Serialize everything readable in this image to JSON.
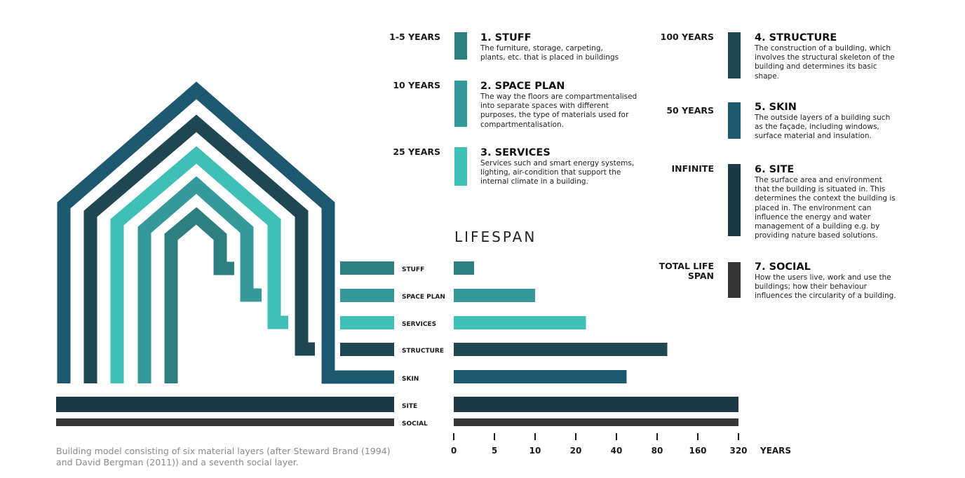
{
  "layers": [
    {
      "key": "stuff",
      "years": "1-5 YEARS",
      "title": "1. STUFF",
      "desc": "The furniture, storage, carpeting, plants, etc. that is placed in buildings",
      "color": "#2e7f80"
    },
    {
      "key": "space_plan",
      "years": "10 YEARS",
      "title": "2. SPACE PLAN",
      "desc": "The way the floors are compartmentalised into separate spaces with different purposes, the type of materials used for compartmentalisation.",
      "color": "#35989a"
    },
    {
      "key": "services",
      "years": "25 YEARS",
      "title": "3. SERVICES",
      "desc": "Services such and smart energy systems, lighting, air-condition that support the internal climate in a building.",
      "color": "#3fbfb5"
    },
    {
      "key": "structure",
      "years": "100 YEARS",
      "title": "4. STRUCTURE",
      "desc": "The construction of a building, which involves the structural skeleton of the building and determines its basic shape.",
      "color": "#1f4752"
    },
    {
      "key": "skin",
      "years": "50 YEARS",
      "title": "5. SKIN",
      "desc": "The outside layers of a building such as the façade, including windows, surface material and insulation.",
      "color": "#1e5870"
    },
    {
      "key": "site",
      "years": "INFINITE",
      "title": "6. SITE",
      "desc": "The surface area and environment that the building is situated in. This determines the context the building is placed in. The environment can influence the energy and water management of a building e.g. by providing nature based solutions.",
      "color": "#1c3a44"
    },
    {
      "key": "social",
      "years": "TOTAL LIFE SPAN",
      "title": "7. SOCIAL",
      "desc": "How the users live, work and use the buildings; how their behaviour influences the circularity of a building.",
      "color": "#363636"
    }
  ],
  "chart_data": {
    "type": "bar",
    "title": "LIFESPAN",
    "categories": [
      "STUFF",
      "SPACE PLAN",
      "SERVICES",
      "STRUCTURE",
      "SKIN",
      "SITE",
      "SOCIAL"
    ],
    "values": [
      2.5,
      10,
      25,
      100,
      50,
      320,
      320
    ],
    "colors": [
      "#2e7f80",
      "#35989a",
      "#3fbfb5",
      "#1f4752",
      "#1e5870",
      "#1c3a44",
      "#363636"
    ],
    "xticks": [
      0,
      5,
      10,
      20,
      40,
      80,
      160,
      320
    ],
    "xtick_labels": [
      "0",
      "5",
      "10",
      "20",
      "40",
      "80",
      "160",
      "320"
    ],
    "xlabel": "YEARS",
    "xscale": "log2-spaced",
    "ylabel": ""
  },
  "caption": "Building model consisting of six material layers (after Steward Brand (1994) and David Bergman (2011)) and a seventh social layer."
}
